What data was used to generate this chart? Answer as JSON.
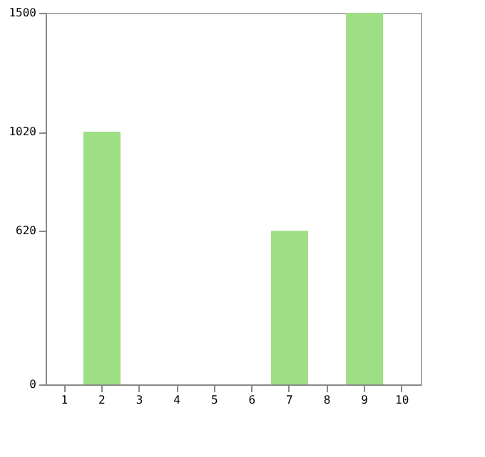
{
  "chart_data": {
    "type": "bar",
    "categories": [
      "1",
      "2",
      "3",
      "4",
      "5",
      "6",
      "7",
      "8",
      "9",
      "10"
    ],
    "values": [
      0,
      1020,
      0,
      0,
      0,
      0,
      620,
      0,
      1500,
      0
    ],
    "color": "#9ede85",
    "ylim": [
      0,
      1500
    ],
    "yticks": [
      0,
      620,
      1020,
      1500
    ],
    "grid": false
  }
}
